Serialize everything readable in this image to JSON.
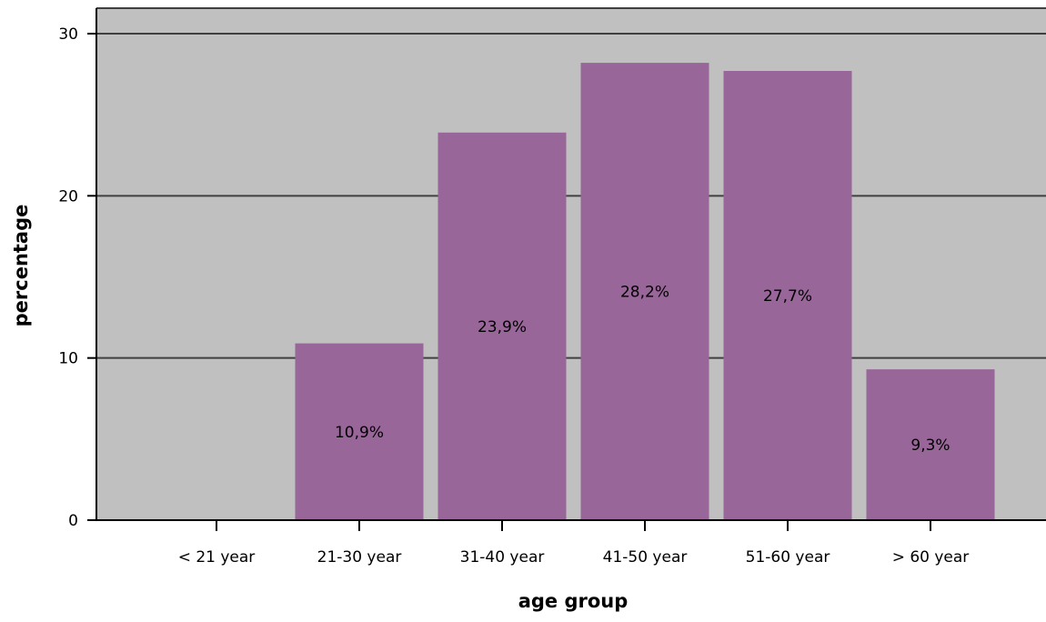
{
  "chart_data": {
    "type": "bar",
    "categories": [
      "< 21 year",
      "21-30 year",
      "31-40 year",
      "41-50 year",
      "51-60 year",
      "> 60 year"
    ],
    "values": [
      0,
      10.9,
      23.9,
      28.2,
      27.7,
      9.3
    ],
    "data_labels": [
      "",
      "10,9%",
      "23,9%",
      "28,2%",
      "27,7%",
      "9,3%"
    ],
    "xlabel": "age group",
    "ylabel": "percentage",
    "ylim": [
      0,
      30
    ],
    "yticks": [
      0,
      10,
      20,
      30
    ],
    "ytick_labels": [
      "0",
      "10",
      "20",
      "30"
    ],
    "grid": "horizontal",
    "colors": {
      "bar": "#996699",
      "plot_background": "#c0c0c0",
      "gridline": "#404040",
      "axis": "#000000"
    }
  }
}
